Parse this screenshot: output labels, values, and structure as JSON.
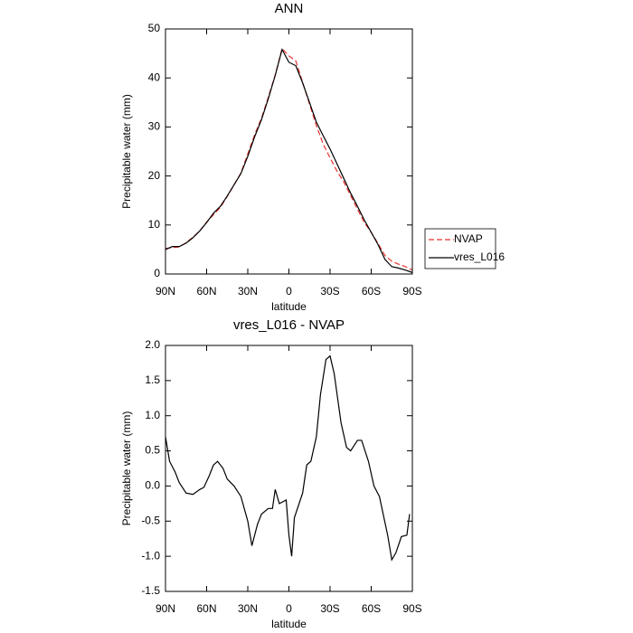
{
  "chart_data": [
    {
      "type": "line",
      "title": "ANN",
      "xlabel": "latitude",
      "ylabel": "Precipitable water (mm)",
      "x": [
        90,
        85,
        80,
        75,
        70,
        65,
        60,
        55,
        50,
        45,
        40,
        35,
        30,
        25,
        20,
        15,
        10,
        5,
        0,
        -5,
        -10,
        -15,
        -20,
        -25,
        -30,
        -35,
        -40,
        -45,
        -50,
        -55,
        -60,
        -65,
        -70,
        -75,
        -80,
        -85,
        -90
      ],
      "series": [
        {
          "name": "NVAP",
          "color": "#e8312f",
          "style": "dashed",
          "values": [
            5.2,
            5.4,
            5.5,
            6.4,
            7.5,
            8.8,
            10.6,
            12.1,
            13.6,
            15.8,
            18.2,
            20.6,
            24.5,
            28.4,
            31.8,
            36.1,
            40.6,
            46.0,
            44.5,
            43.5,
            39.1,
            34.7,
            30.3,
            26.5,
            23.7,
            21.0,
            18.8,
            16.0,
            13.2,
            10.5,
            8.5,
            6.2,
            3.8,
            2.6,
            2.0,
            1.5,
            0.8
          ]
        },
        {
          "name": "vres_L016",
          "color": "#000000",
          "style": "solid",
          "values": [
            5.0,
            5.6,
            5.6,
            6.3,
            7.4,
            8.8,
            10.5,
            12.4,
            13.8,
            15.9,
            18.2,
            20.5,
            24.0,
            28.0,
            31.5,
            35.8,
            40.5,
            45.8,
            43.2,
            42.5,
            39.0,
            35.0,
            31.0,
            28.2,
            25.5,
            22.5,
            19.5,
            16.5,
            13.8,
            11.0,
            8.5,
            6.0,
            3.0,
            1.5,
            1.2,
            0.8,
            0.3
          ]
        }
      ],
      "xlim": [
        90,
        -90
      ],
      "xticks": [
        {
          "value": 90,
          "label": "90N"
        },
        {
          "value": 60,
          "label": "60N"
        },
        {
          "value": 30,
          "label": "30N"
        },
        0,
        {
          "value": -30,
          "label": "30S"
        },
        {
          "value": -60,
          "label": "60S"
        },
        {
          "value": -90,
          "label": "90S"
        }
      ],
      "ylim": [
        0,
        50
      ],
      "yticks": [
        0,
        10,
        20,
        30,
        40,
        50
      ],
      "legend": "right"
    },
    {
      "type": "line",
      "title": "vres_L016 - NVAP",
      "xlabel": "latitude",
      "ylabel": "Precipitable water (mm)",
      "x": [
        90,
        87,
        83,
        80,
        75,
        70,
        65,
        62,
        58,
        55,
        52,
        48,
        45,
        40,
        35,
        30,
        27,
        23,
        20,
        15,
        12,
        10,
        7,
        2,
        0,
        -2,
        -4,
        -10,
        -13,
        -16,
        -20,
        -23,
        -27,
        -30,
        -33,
        -38,
        -42,
        -45,
        -50,
        -53,
        -58,
        -62,
        -66,
        -72,
        -75,
        -78,
        -82,
        -86,
        -88
      ],
      "values": [
        0.7,
        0.35,
        0.2,
        0.05,
        -0.1,
        -0.12,
        -0.05,
        -0.02,
        0.15,
        0.3,
        0.35,
        0.25,
        0.1,
        0.0,
        -0.15,
        -0.5,
        -0.85,
        -0.55,
        -0.4,
        -0.32,
        -0.32,
        -0.05,
        -0.25,
        -0.2,
        -0.7,
        -1.0,
        -0.45,
        -0.1,
        0.3,
        0.35,
        0.7,
        1.3,
        1.8,
        1.85,
        1.6,
        0.9,
        0.55,
        0.5,
        0.65,
        0.65,
        0.35,
        0.0,
        -0.15,
        -0.7,
        -1.05,
        -0.95,
        -0.72,
        -0.7,
        -0.4
      ],
      "color": "#000000",
      "xlim": [
        90,
        -90
      ],
      "xticks": [
        {
          "value": 90,
          "label": "90N"
        },
        {
          "value": 60,
          "label": "60N"
        },
        {
          "value": 30,
          "label": "30N"
        },
        0,
        {
          "value": -30,
          "label": "30S"
        },
        {
          "value": -60,
          "label": "60S"
        },
        {
          "value": -90,
          "label": "90S"
        }
      ],
      "ylim": [
        -1.5,
        2.0
      ],
      "yticks": [
        -1.5,
        {
          "value": -1.0,
          "label": "-1.0"
        },
        -0.5,
        {
          "value": 0.0,
          "label": "0.0"
        },
        0.5,
        {
          "value": 1.0,
          "label": "1.0"
        },
        1.5,
        {
          "value": 2.0,
          "label": "2.0"
        }
      ]
    }
  ]
}
